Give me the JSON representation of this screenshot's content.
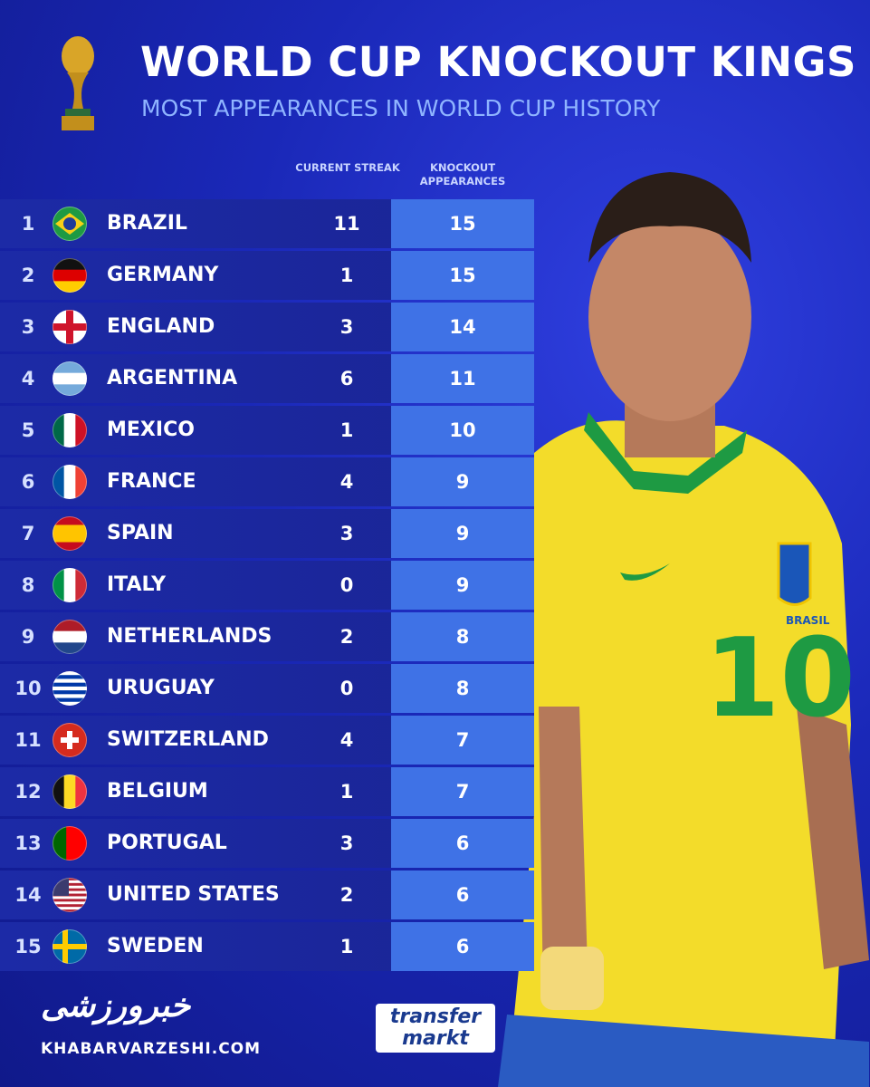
{
  "header": {
    "title": "WORLD CUP KNOCKOUT KINGS",
    "subtitle": "MOST APPEARANCES IN WORLD CUP HISTORY"
  },
  "table": {
    "columns": [
      "CURRENT STREAK",
      "KNOCKOUT APPEARANCES"
    ],
    "rows": [
      [
        "1",
        "BRAZIL",
        "11",
        "15"
      ],
      [
        "2",
        "GERMANY",
        "1",
        "15"
      ],
      [
        "3",
        "ENGLAND",
        "3",
        "14"
      ],
      [
        "4",
        "ARGENTINA",
        "6",
        "11"
      ],
      [
        "5",
        "MEXICO",
        "1",
        "10"
      ],
      [
        "6",
        "FRANCE",
        "4",
        "9"
      ],
      [
        "7",
        "SPAIN",
        "3",
        "9"
      ],
      [
        "8",
        "ITALY",
        "0",
        "9"
      ],
      [
        "9",
        "NETHERLANDS",
        "2",
        "8"
      ],
      [
        "10",
        "URUGUAY",
        "0",
        "8"
      ],
      [
        "11",
        "SWITZERLAND",
        "4",
        "7"
      ],
      [
        "12",
        "BELGIUM",
        "1",
        "7"
      ],
      [
        "13",
        "PORTUGAL",
        "3",
        "6"
      ],
      [
        "14",
        "UNITED STATES",
        "2",
        "6"
      ],
      [
        "15",
        "SWEDEN",
        "1",
        "6"
      ]
    ]
  },
  "photo": {
    "shirt_number": "10",
    "crest_text": "BRASIL"
  },
  "footer": {
    "brand_persian": "خبرورزشی",
    "site": "KHABARVARZESHI.COM",
    "logo_top": "transfer",
    "logo_bottom": "markt"
  }
}
